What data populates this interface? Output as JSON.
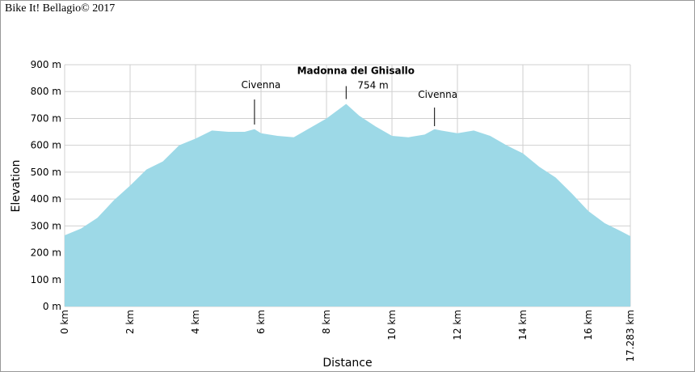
{
  "chart_data": {
    "type": "area",
    "header": "Bike It! Bellagio© 2017",
    "x_label": "Distance",
    "y_label": "Elevation",
    "x": [
      0,
      0.5,
      1,
      1.5,
      2,
      2.5,
      3,
      3.5,
      4,
      4.5,
      5,
      5.5,
      5.8,
      6,
      6.5,
      7,
      7.5,
      8,
      8.5,
      8.6,
      9,
      9.5,
      10,
      10.5,
      11,
      11.3,
      11.5,
      12,
      12.5,
      13,
      13.5,
      14,
      14.5,
      15,
      15.5,
      16,
      16.5,
      17,
      17.283
    ],
    "values": [
      265,
      290,
      330,
      395,
      450,
      510,
      540,
      600,
      625,
      655,
      650,
      650,
      660,
      645,
      635,
      630,
      665,
      700,
      745,
      754,
      710,
      670,
      635,
      630,
      640,
      660,
      655,
      645,
      655,
      635,
      600,
      570,
      520,
      480,
      420,
      355,
      310,
      280,
      262
    ],
    "color": "#9dd9e7",
    "xlim": [
      0,
      17.283
    ],
    "ylim": [
      0,
      900
    ],
    "xticks": [
      {
        "value": 0,
        "label": "0 km"
      },
      {
        "value": 2,
        "label": "2 km"
      },
      {
        "value": 4,
        "label": "4 km"
      },
      {
        "value": 6,
        "label": "6 km"
      },
      {
        "value": 8,
        "label": "8 km"
      },
      {
        "value": 10,
        "label": "10 km"
      },
      {
        "value": 12,
        "label": "12 km"
      },
      {
        "value": 14,
        "label": "14 km"
      },
      {
        "value": 16,
        "label": "16 km"
      },
      {
        "value": 17.283,
        "label": "17.283 km"
      }
    ],
    "yticks": [
      {
        "value": 0,
        "label": "0 m"
      },
      {
        "value": 100,
        "label": "100 m"
      },
      {
        "value": 200,
        "label": "200 m"
      },
      {
        "value": 300,
        "label": "300 m"
      },
      {
        "value": 400,
        "label": "400 m"
      },
      {
        "value": 500,
        "label": "500 m"
      },
      {
        "value": 600,
        "label": "600 m"
      },
      {
        "value": 700,
        "label": "700 m"
      },
      {
        "value": 800,
        "label": "800 m"
      },
      {
        "value": 900,
        "label": "900 m"
      }
    ],
    "grid": true,
    "annotations": [
      {
        "label": "Civenna",
        "x": 5.8
      },
      {
        "label": "Madonna del Ghisallo",
        "x": 8.6,
        "value": 754,
        "value_label": "754 m"
      },
      {
        "label": "Civenna",
        "x": 11.3
      }
    ]
  }
}
